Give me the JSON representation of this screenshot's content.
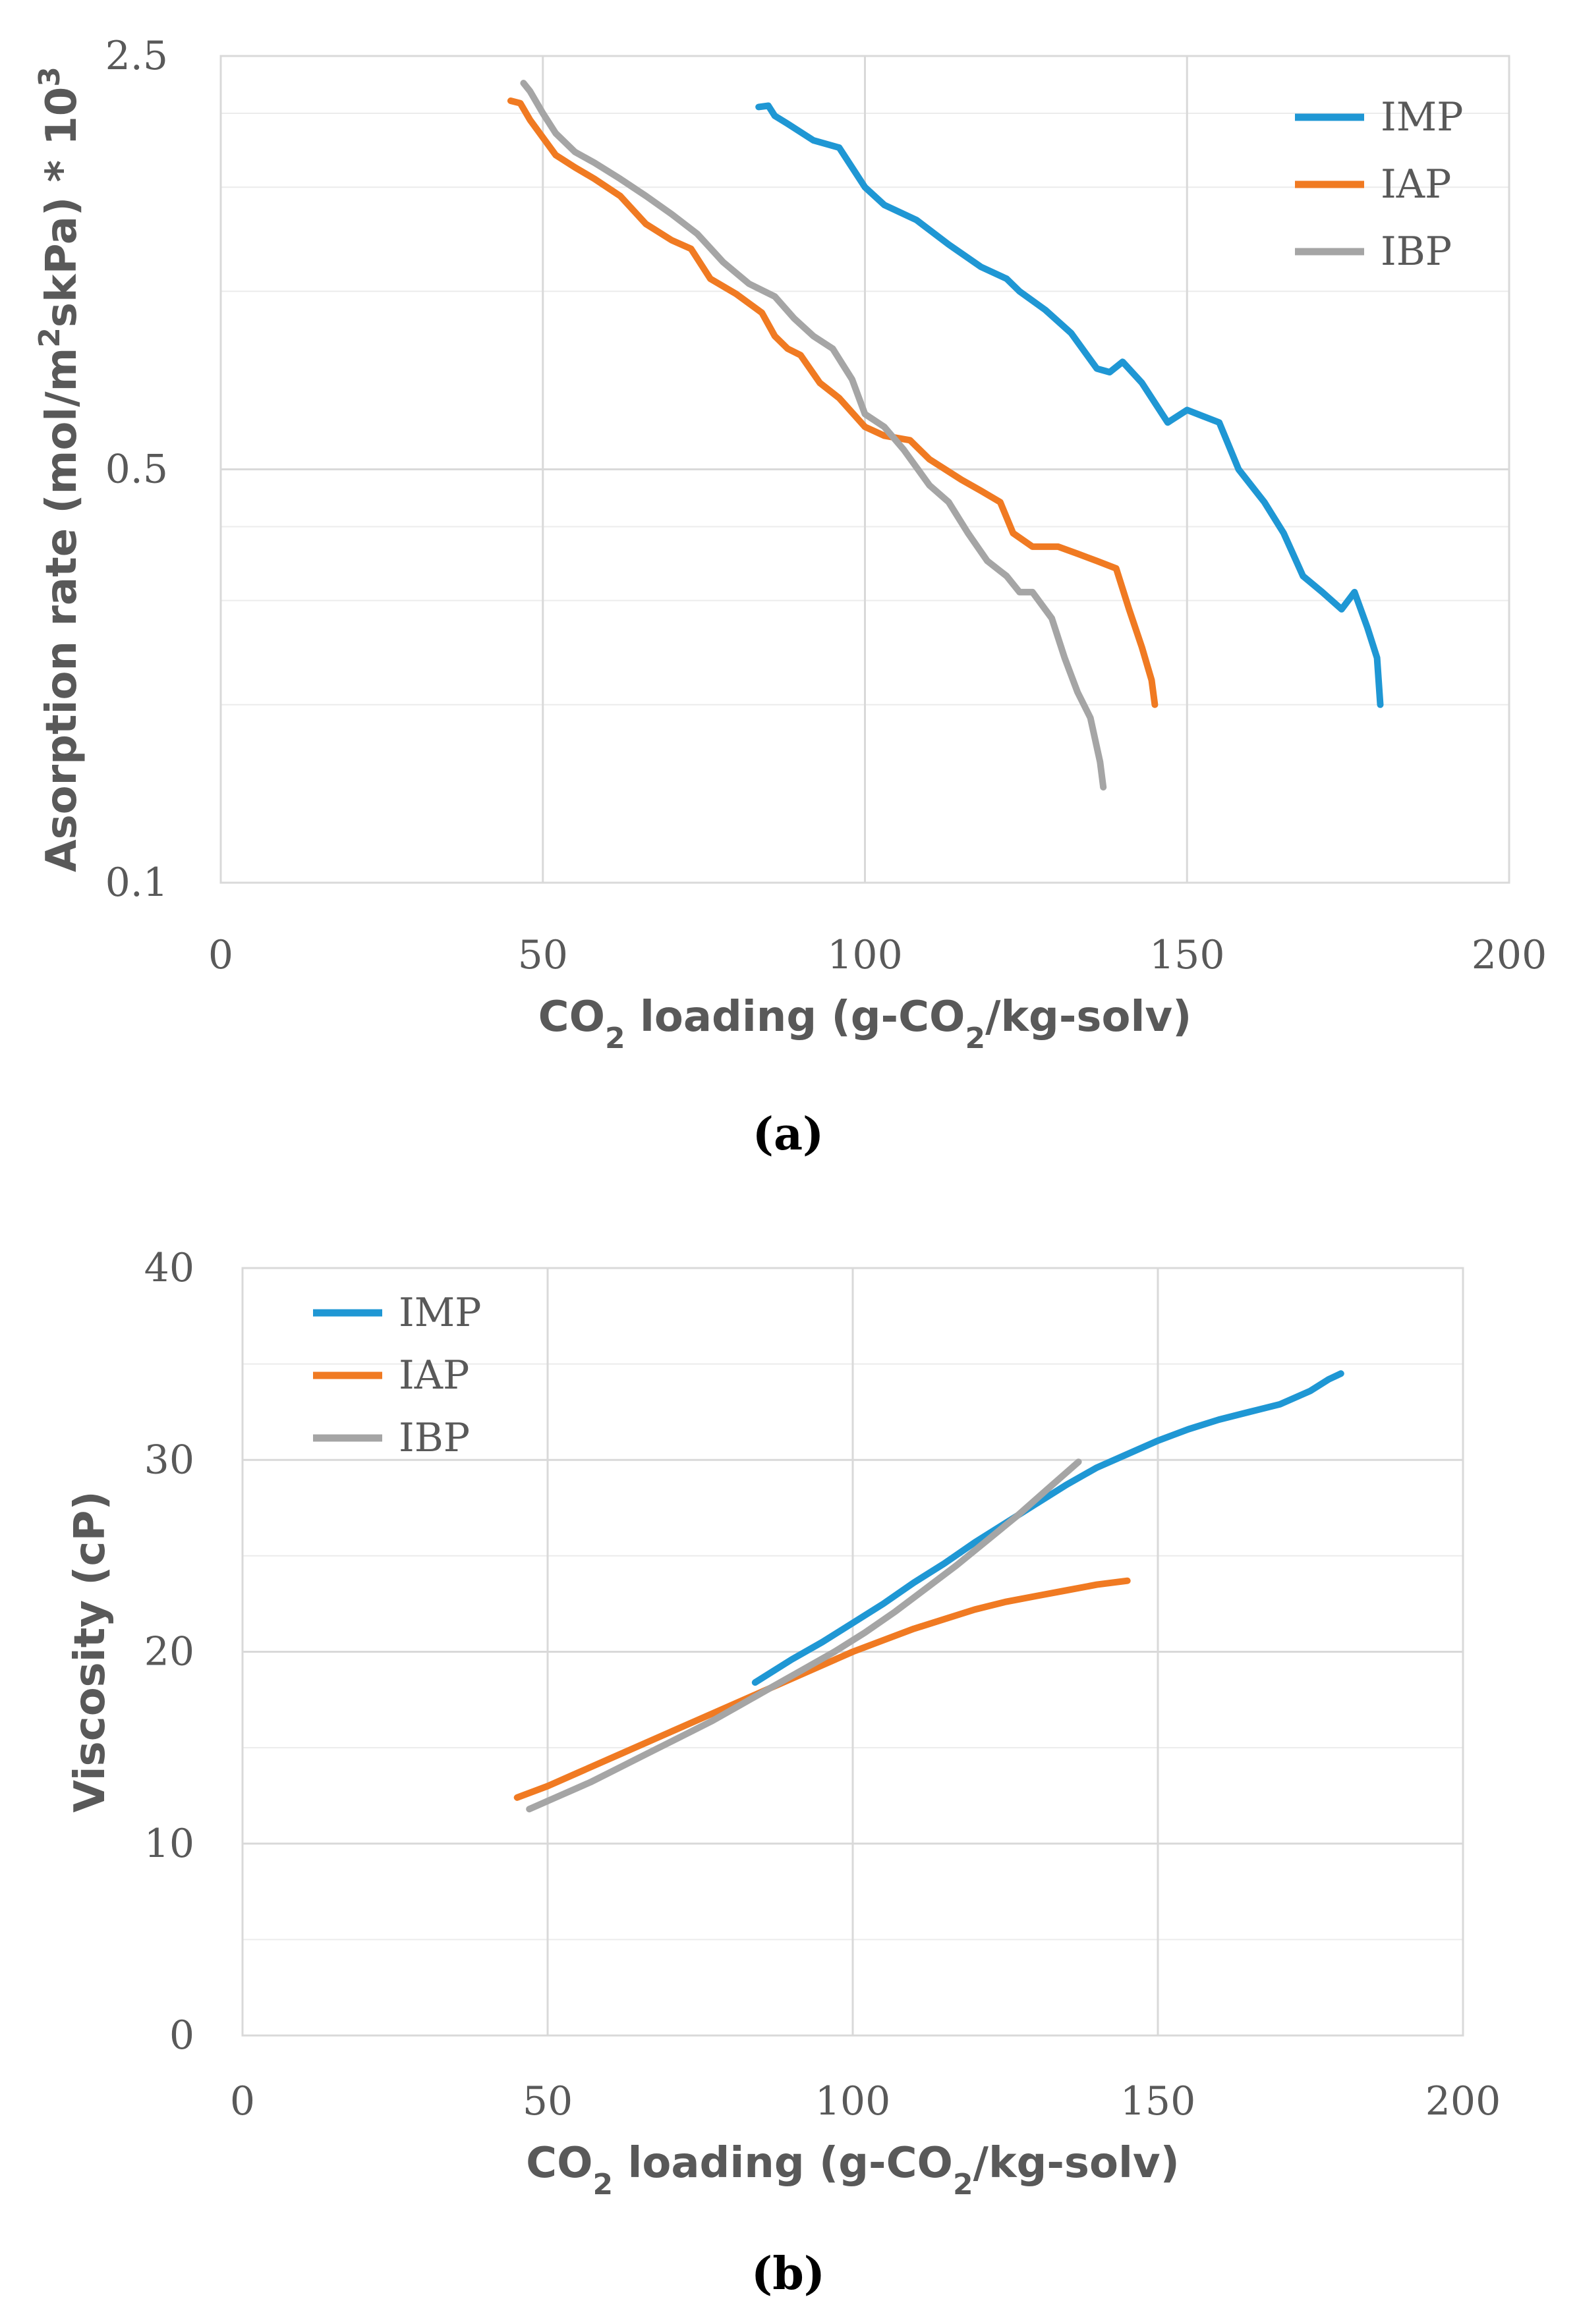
{
  "chart_data": [
    {
      "type": "line",
      "panel_label": "(a)",
      "title": "",
      "xlabel": {
        "main": "CO",
        "sub": "2",
        "rest": " loading (g-CO",
        "sub2": "2",
        "rest2": "/kg-solv)"
      },
      "ylabel": {
        "main": "Asorption rate (mol/m",
        "sup": "2",
        "rest": "skPa) * 10",
        "sup2": "3"
      },
      "xlim": [
        0,
        200
      ],
      "ylim": [
        0.1,
        2.5
      ],
      "yscale": "log",
      "xticks": [
        "0",
        "50",
        "100",
        "150",
        "200"
      ],
      "yticks": [
        {
          "label": "0.1",
          "value": 0.1
        },
        {
          "label": "0.5",
          "value": 0.5
        },
        {
          "label": "2.5",
          "value": 2.5
        }
      ],
      "grid": true,
      "legend_position": "top-right",
      "series": [
        {
          "name": "IMP",
          "color": "#1f97d4",
          "x": [
            83.5,
            85,
            86,
            88,
            92,
            96,
            100,
            103,
            108,
            113,
            118,
            122,
            124,
            128,
            132,
            136,
            138,
            140,
            143,
            147,
            150,
            155,
            158,
            162,
            165,
            168,
            171,
            174,
            176,
            178,
            179.5,
            180
          ],
          "y": [
            2.05,
            2.06,
            1.98,
            1.92,
            1.8,
            1.75,
            1.5,
            1.4,
            1.32,
            1.2,
            1.1,
            1.05,
            1.0,
            0.93,
            0.85,
            0.74,
            0.73,
            0.76,
            0.7,
            0.6,
            0.63,
            0.6,
            0.5,
            0.44,
            0.39,
            0.33,
            0.31,
            0.29,
            0.31,
            0.27,
            0.24,
            0.2
          ]
        },
        {
          "name": "IAP",
          "color": "#f07a22",
          "x": [
            45,
            46.5,
            48,
            52,
            55,
            58,
            62,
            66,
            70,
            73,
            76,
            80,
            84,
            86,
            88,
            90,
            93,
            96,
            100,
            103,
            107,
            110,
            115,
            118,
            121,
            123,
            126,
            130,
            133,
            136,
            139,
            141,
            143,
            144.5,
            145
          ],
          "y": [
            2.1,
            2.08,
            1.95,
            1.7,
            1.62,
            1.55,
            1.45,
            1.3,
            1.22,
            1.18,
            1.05,
            0.99,
            0.92,
            0.84,
            0.8,
            0.78,
            0.7,
            0.66,
            0.59,
            0.57,
            0.56,
            0.52,
            0.48,
            0.46,
            0.44,
            0.39,
            0.37,
            0.37,
            0.36,
            0.35,
            0.34,
            0.29,
            0.25,
            0.22,
            0.2
          ]
        },
        {
          "name": "IBP",
          "color": "#a5a5a5",
          "x": [
            47,
            48,
            50,
            52,
            55,
            58,
            62,
            66,
            70,
            74,
            78,
            82,
            86,
            89,
            92,
            95,
            98,
            100,
            103,
            106,
            110,
            113,
            116,
            119,
            122,
            124,
            126,
            129,
            131,
            133,
            135,
            136.5,
            137
          ],
          "y": [
            2.25,
            2.18,
            2.0,
            1.85,
            1.72,
            1.65,
            1.55,
            1.45,
            1.35,
            1.25,
            1.12,
            1.03,
            0.98,
            0.9,
            0.84,
            0.8,
            0.71,
            0.62,
            0.59,
            0.54,
            0.47,
            0.44,
            0.39,
            0.35,
            0.33,
            0.31,
            0.31,
            0.28,
            0.24,
            0.21,
            0.19,
            0.16,
            0.145
          ]
        }
      ]
    },
    {
      "type": "line",
      "panel_label": "(b)",
      "title": "",
      "xlabel": {
        "main": "CO",
        "sub": "2",
        "rest": " loading (g-CO",
        "sub2": "2",
        "rest2": "/kg-solv)"
      },
      "ylabel": "Viscosity (cP)",
      "xlim": [
        0,
        200
      ],
      "ylim": [
        0,
        40
      ],
      "yscale": "linear",
      "xticks": [
        "0",
        "50",
        "100",
        "150",
        "200"
      ],
      "yticks": [
        {
          "label": "0",
          "value": 0
        },
        {
          "label": "10",
          "value": 10
        },
        {
          "label": "20",
          "value": 20
        },
        {
          "label": "30",
          "value": 30
        },
        {
          "label": "40",
          "value": 40
        }
      ],
      "grid": true,
      "legend_position": "top-left",
      "series": [
        {
          "name": "IMP",
          "color": "#1f97d4",
          "x": [
            84,
            90,
            95,
            100,
            105,
            110,
            115,
            120,
            125,
            130,
            135,
            140,
            145,
            150,
            155,
            160,
            165,
            170,
            175,
            178,
            180
          ],
          "y": [
            18.4,
            19.6,
            20.5,
            21.5,
            22.5,
            23.6,
            24.6,
            25.7,
            26.7,
            27.7,
            28.7,
            29.6,
            30.3,
            31.0,
            31.6,
            32.1,
            32.5,
            32.9,
            33.6,
            34.2,
            34.5
          ]
        },
        {
          "name": "IAP",
          "color": "#f07a22",
          "x": [
            45,
            50,
            55,
            60,
            65,
            70,
            75,
            80,
            85,
            90,
            95,
            100,
            105,
            110,
            115,
            120,
            125,
            130,
            135,
            140,
            145
          ],
          "y": [
            12.4,
            13.0,
            13.7,
            14.4,
            15.1,
            15.8,
            16.5,
            17.2,
            17.9,
            18.6,
            19.3,
            20.0,
            20.6,
            21.2,
            21.7,
            22.2,
            22.6,
            22.9,
            23.2,
            23.5,
            23.7
          ]
        },
        {
          "name": "IBP",
          "color": "#a5a5a5",
          "x": [
            47,
            52,
            57,
            62,
            67,
            72,
            77,
            82,
            87,
            92,
            97,
            102,
            107,
            112,
            117,
            122,
            127,
            132,
            137
          ],
          "y": [
            11.8,
            12.5,
            13.2,
            14.0,
            14.8,
            15.6,
            16.4,
            17.3,
            18.2,
            19.1,
            20.0,
            21.0,
            22.1,
            23.3,
            24.5,
            25.8,
            27.1,
            28.5,
            29.9
          ]
        }
      ]
    }
  ]
}
